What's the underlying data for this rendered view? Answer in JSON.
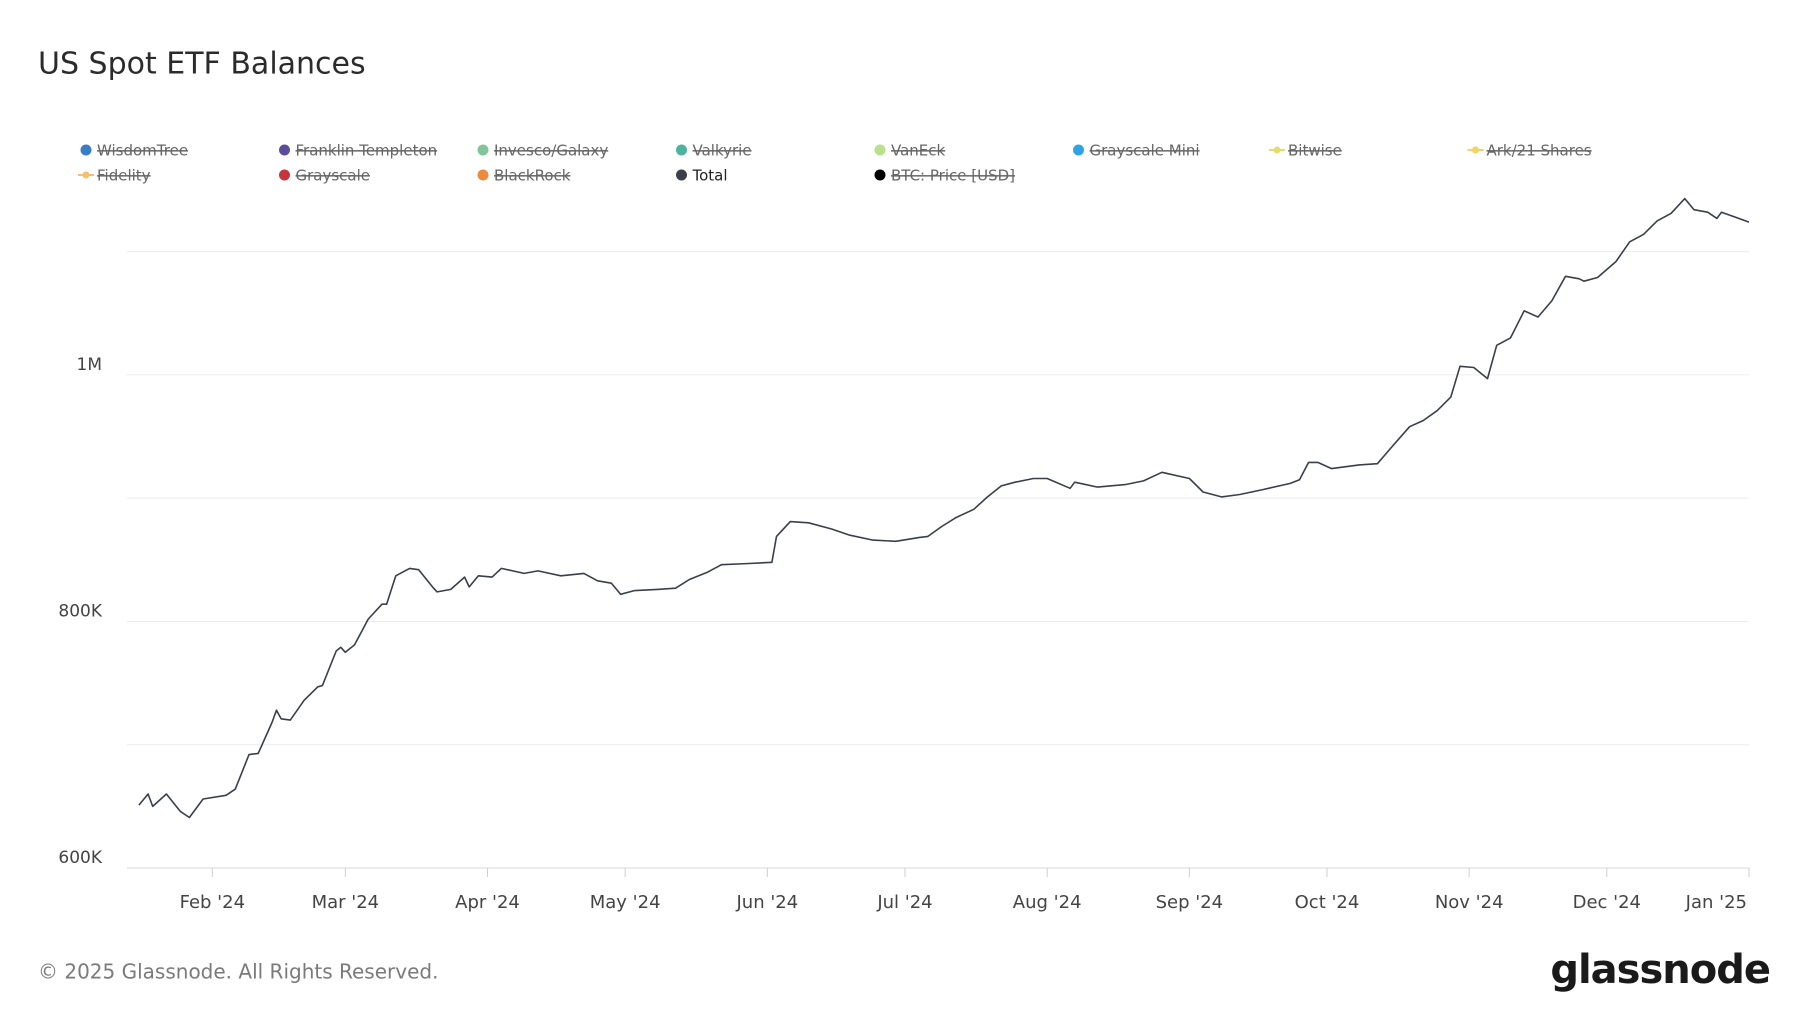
{
  "chart_data": {
    "type": "line",
    "title": "US Spot ETF Balances",
    "footer": "© 2025 Glassnode. All Rights Reserved.",
    "brand": "glassnode",
    "xlim": [
      12.4,
      366
    ],
    "xticks": [
      {
        "value": 31,
        "label": "Feb '24"
      },
      {
        "value": 60,
        "label": "Mar '24"
      },
      {
        "value": 91,
        "label": "Apr '24"
      },
      {
        "value": 121,
        "label": "May '24"
      },
      {
        "value": 152,
        "label": "Jun '24"
      },
      {
        "value": 182,
        "label": "Jul '24"
      },
      {
        "value": 213,
        "label": "Aug '24"
      },
      {
        "value": 244,
        "label": "Sep '24"
      },
      {
        "value": 274,
        "label": "Oct '24"
      },
      {
        "value": 305,
        "label": "Nov '24"
      },
      {
        "value": 335,
        "label": "Dec '24"
      },
      {
        "value": 366,
        "label": "Jan '25"
      }
    ],
    "ylim": [
      600000,
      1150000
    ],
    "yticks": [
      {
        "value": 600000,
        "label": "600K"
      },
      {
        "value": 700000,
        "label": null
      },
      {
        "value": 800000,
        "label": "800K"
      },
      {
        "value": 900000,
        "label": null
      },
      {
        "value": 1000000,
        "label": "1M"
      },
      {
        "value": 1100000,
        "label": null
      }
    ],
    "grid": true,
    "x": [
      15,
      17,
      18,
      21,
      24,
      26,
      29,
      34,
      36,
      39,
      41,
      44,
      45,
      46,
      48,
      51,
      54,
      55,
      58,
      59,
      60,
      62,
      65,
      68,
      69,
      71,
      74,
      76,
      79,
      80,
      83,
      86,
      87,
      89,
      92,
      94,
      99,
      102,
      107,
      112,
      115,
      118,
      120,
      123,
      128,
      132,
      135,
      139,
      142,
      148,
      153,
      154,
      157,
      161,
      166,
      170,
      175,
      180,
      185,
      187,
      190,
      193,
      197,
      200,
      203,
      206,
      210,
      213,
      218,
      219,
      224,
      230,
      234,
      238,
      244,
      247,
      251,
      255,
      260,
      266,
      268,
      270,
      272,
      275,
      281,
      285,
      288,
      292,
      295,
      298,
      301,
      303,
      306,
      309,
      311,
      314,
      317,
      320,
      323,
      326,
      329,
      330,
      333,
      337,
      340,
      343,
      346,
      349,
      352,
      354,
      357,
      359,
      360,
      363,
      366
    ],
    "series": [
      {
        "name": "WisdomTree",
        "color": "#3a7dc4",
        "marker": "dot",
        "visible": false
      },
      {
        "name": "Franklin Templeton",
        "color": "#5b4d9b",
        "marker": "dot",
        "visible": false
      },
      {
        "name": "Invesco/Galaxy",
        "color": "#7fc79a",
        "marker": "dot",
        "visible": false
      },
      {
        "name": "Valkyrie",
        "color": "#4bb3a0",
        "marker": "dot",
        "visible": false
      },
      {
        "name": "VanEck",
        "color": "#b9e08a",
        "marker": "dot",
        "visible": false
      },
      {
        "name": "Grayscale Mini",
        "color": "#2ea3e6",
        "marker": "dot",
        "visible": false
      },
      {
        "name": "Bitwise",
        "color": "#e3dc6e",
        "marker": "line",
        "visible": false
      },
      {
        "name": "Ark/21 Shares",
        "color": "#f2d35e",
        "marker": "line",
        "visible": false
      },
      {
        "name": "Fidelity",
        "color": "#f5c06b",
        "marker": "line",
        "visible": false
      },
      {
        "name": "Grayscale",
        "color": "#c8343e",
        "marker": "dot",
        "visible": false
      },
      {
        "name": "BlackRock",
        "color": "#ee8a3c",
        "marker": "dot",
        "visible": false
      },
      {
        "name": "Total",
        "color": "#3a3f4a",
        "marker": "dot",
        "visible": true,
        "values": [
          651000,
          660000,
          650000,
          660000,
          646000,
          641000,
          656000,
          659000,
          664000,
          692000,
          693000,
          718000,
          728000,
          721000,
          720000,
          736000,
          747000,
          748000,
          776000,
          779000,
          775000,
          781000,
          802000,
          814000,
          814000,
          837000,
          843000,
          842000,
          828000,
          824000,
          826000,
          836000,
          828000,
          837000,
          836000,
          843000,
          839000,
          841000,
          837000,
          839000,
          833000,
          831000,
          822000,
          825000,
          826000,
          827000,
          834000,
          840000,
          846000,
          847000,
          848000,
          869000,
          881000,
          880000,
          875000,
          870000,
          866000,
          865000,
          868000,
          869000,
          877000,
          884000,
          891000,
          901000,
          910000,
          913000,
          916000,
          916000,
          908000,
          913000,
          909000,
          911000,
          914000,
          921000,
          916000,
          905000,
          901000,
          903000,
          907000,
          912000,
          915000,
          929000,
          929000,
          924000,
          927000,
          928000,
          941000,
          958000,
          963000,
          971000,
          982000,
          1007000,
          1006000,
          997000,
          1024000,
          1030000,
          1052000,
          1047000,
          1060000,
          1080000,
          1078000,
          1076000,
          1079000,
          1092000,
          1108000,
          1114000,
          1125000,
          1131000,
          1143000,
          1134000,
          1132000,
          1127000,
          1132000,
          1128000,
          1124000
        ]
      },
      {
        "name": "BTC: Price [USD]",
        "color": "#000000",
        "marker": "dot",
        "visible": false
      }
    ]
  }
}
